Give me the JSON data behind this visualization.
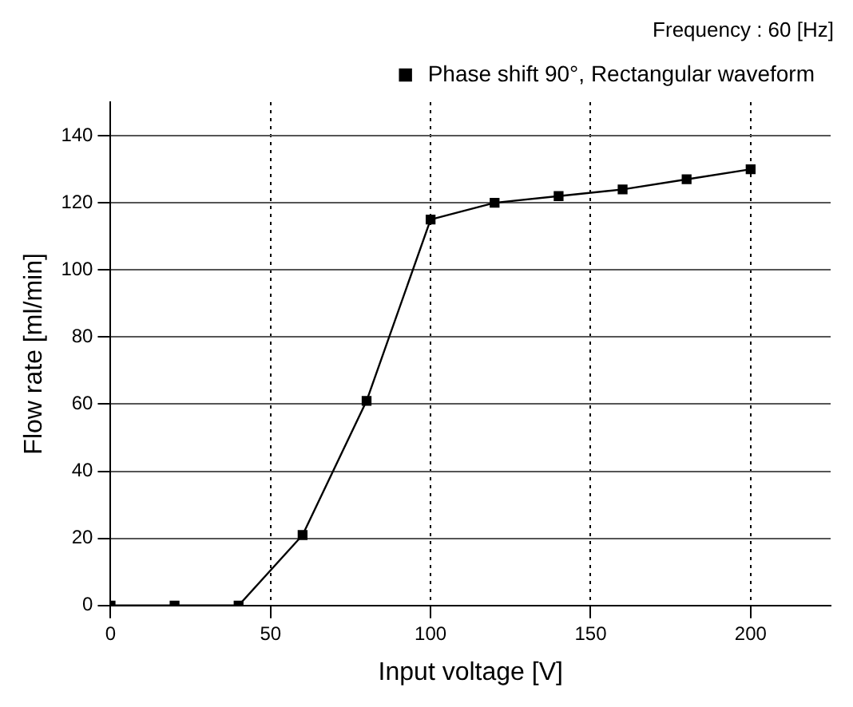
{
  "chart_data": {
    "type": "line",
    "xlabel": "Input voltage [V]",
    "ylabel": "Flow rate [ml/min]",
    "annotations": [
      "Frequency : 60 [Hz]"
    ],
    "x": [
      0,
      20,
      40,
      60,
      80,
      100,
      120,
      140,
      160,
      180,
      200
    ],
    "series": [
      {
        "name": "Phase shift 90°, Rectangular waveform",
        "color": "#000000",
        "values": [
          0,
          0,
          0,
          21,
          61,
          115,
          120,
          122,
          124,
          127,
          130
        ]
      }
    ],
    "xlim": [
      0,
      225
    ],
    "xticks": [
      0,
      50,
      100,
      150,
      200
    ],
    "ylim": [
      0,
      150
    ],
    "yticks": [
      0,
      20,
      40,
      60,
      80,
      100,
      120,
      140
    ],
    "grid": true,
    "legend": "top right",
    "marker": "square",
    "line_style": "solid"
  }
}
